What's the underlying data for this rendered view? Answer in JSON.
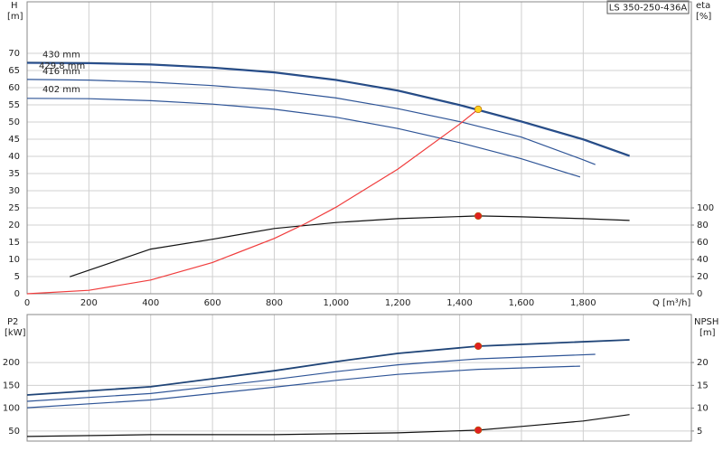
{
  "chart_data": [
    {
      "type": "line",
      "title": "LS 350-250-436A",
      "y_label": "H",
      "y_unit": "[m]",
      "y2_label": "eta",
      "y2_unit": "[%]",
      "x_label": "Q [m³/h]",
      "xlim": [
        0,
        2150
      ],
      "xticks": [
        0,
        200,
        400,
        600,
        800,
        {
          "value": 1000,
          "label": "1,000"
        },
        {
          "value": 1200,
          "label": "1,200"
        },
        {
          "value": 1400,
          "label": "1,400"
        },
        {
          "value": 1600,
          "label": "1,600"
        },
        {
          "value": 1800,
          "label": "1,800"
        }
      ],
      "ylim": [
        0,
        85
      ],
      "yticks": [
        0,
        5,
        10,
        15,
        20,
        25,
        30,
        35,
        40,
        45,
        50,
        55,
        60,
        65,
        70
      ],
      "y2lim": [
        0,
        340
      ],
      "y2ticks": [
        0,
        20,
        40,
        60,
        80,
        100
      ],
      "grid": true,
      "series": [
        {
          "name": "430 mm",
          "color": "#1f4477",
          "x": [
            0,
            200,
            400,
            600,
            800,
            1000,
            1200,
            1400,
            1600,
            1800,
            1950
          ],
          "values": [
            67.3,
            67.2,
            66.8,
            65.9,
            64.5,
            62.3,
            59.2,
            55.0,
            50.2,
            45.0,
            40.2
          ]
        },
        {
          "name": "429.8 mm",
          "color": "#2f5597",
          "x": [
            0,
            200,
            400,
            600,
            800,
            1000,
            1200,
            1400,
            1600,
            1800,
            1950
          ],
          "values": [
            67.1,
            67.0,
            66.6,
            65.7,
            64.3,
            62.1,
            59.0,
            54.8,
            50.0,
            44.8,
            40.0
          ]
        },
        {
          "name": "416 mm",
          "color": "#2f5597",
          "x": [
            0,
            200,
            400,
            600,
            800,
            1000,
            1200,
            1400,
            1600,
            1800,
            1839
          ],
          "values": [
            62.4,
            62.2,
            61.6,
            60.6,
            59.2,
            57.0,
            53.9,
            50.1,
            45.6,
            39.0,
            37.6
          ]
        },
        {
          "name": "402 mm",
          "color": "#2f5597",
          "x": [
            0,
            200,
            400,
            600,
            800,
            1000,
            1200,
            1400,
            1600,
            1790
          ],
          "values": [
            56.9,
            56.8,
            56.2,
            55.2,
            53.7,
            51.4,
            48.1,
            44.0,
            39.3,
            34.0
          ]
        },
        {
          "color": "#111111",
          "axis": "y2",
          "x": [
            138,
            400,
            600,
            800,
            1000,
            1200,
            1460,
            1600,
            1800,
            1950
          ],
          "values": [
            19.8,
            52,
            63.5,
            76,
            83,
            87.5,
            90.6,
            89.6,
            87.5,
            85.4
          ]
        },
        {
          "color": "#f03c3c",
          "x": [
            0,
            200,
            400,
            600,
            800,
            900,
            1000,
            1200,
            1400,
            1460
          ],
          "values": [
            0,
            1.0,
            4.0,
            9.1,
            16.1,
            20.4,
            25.2,
            36.3,
            49.4,
            53.7
          ]
        }
      ],
      "points": [
        {
          "x": 1460,
          "y": 53.7,
          "color": "#ffd21f"
        },
        {
          "x": 1460,
          "y": 90.6,
          "color": "#e02020",
          "axis": "y2"
        }
      ]
    },
    {
      "type": "line",
      "y_label": "P2",
      "y_unit": "[kW]",
      "y2_label": "NPSH",
      "y2_unit": "[m]",
      "xlim": [
        0,
        2150
      ],
      "ylim": [
        28,
        305
      ],
      "yticks": [
        50,
        100,
        150,
        200
      ],
      "y2lim": [
        2.8,
        30.5
      ],
      "y2ticks": [
        5,
        10,
        15,
        20
      ],
      "grid": true,
      "series": [
        {
          "color": "#1f4477",
          "x": [
            0,
            400,
            800,
            1000,
            1200,
            1460,
            1950
          ],
          "values": [
            129,
            147,
            182,
            202,
            220,
            235.8,
            249.6
          ]
        },
        {
          "color": "#2f5597",
          "x": [
            0,
            400,
            800,
            1000,
            1200,
            1460,
            1839
          ],
          "values": [
            115,
            132,
            163,
            180,
            195,
            208,
            218
          ]
        },
        {
          "color": "#2f5597",
          "x": [
            0,
            400,
            800,
            1000,
            1200,
            1460,
            1790
          ],
          "values": [
            101,
            118,
            146,
            161,
            174,
            185,
            192
          ]
        },
        {
          "color": "#111111",
          "axis": "y2",
          "x": [
            0,
            400,
            800,
            1000,
            1200,
            1460,
            1600,
            1800,
            1950
          ],
          "values": [
            3.8,
            4.2,
            4.2,
            4.4,
            4.6,
            5.2,
            6.0,
            7.2,
            8.6
          ]
        }
      ],
      "points": [
        {
          "x": 1460,
          "y": 235.8,
          "color": "#e02020"
        },
        {
          "x": 1460,
          "y": 5.2,
          "color": "#e02020",
          "axis": "y2"
        }
      ]
    }
  ]
}
